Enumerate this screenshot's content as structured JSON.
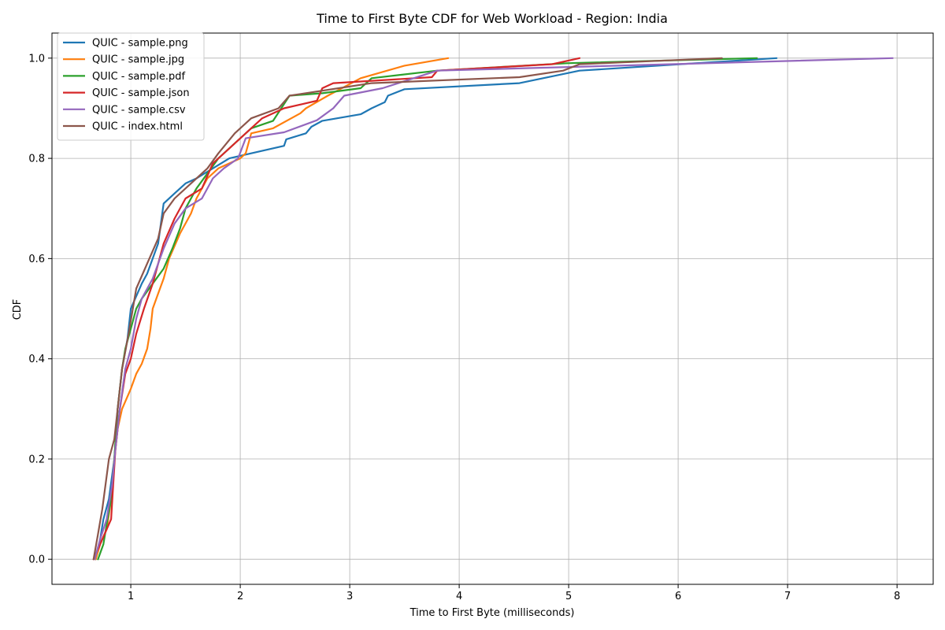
{
  "chart_data": {
    "type": "line",
    "title": "Time to First Byte CDF for Web Workload - Region: India",
    "xlabel": "Time to First Byte (milliseconds)",
    "ylabel": "CDF",
    "xlim": [
      0.28,
      8.33
    ],
    "ylim": [
      -0.05,
      1.05
    ],
    "xticks": [
      1,
      2,
      3,
      4,
      5,
      6,
      7,
      8
    ],
    "yticks": [
      0.0,
      0.2,
      0.4,
      0.6,
      0.8,
      1.0
    ],
    "xtick_labels": [
      "1",
      "2",
      "3",
      "4",
      "5",
      "6",
      "7",
      "8"
    ],
    "ytick_labels": [
      "0.0",
      "0.2",
      "0.4",
      "0.6",
      "0.8",
      "1.0"
    ],
    "grid": true,
    "legend_position": "top-left",
    "series": [
      {
        "name": "QUIC - sample.png",
        "color": "#1f77b4",
        "points": [
          [
            0.68,
            0.0
          ],
          [
            0.72,
            0.04
          ],
          [
            0.75,
            0.08
          ],
          [
            0.8,
            0.12
          ],
          [
            0.85,
            0.2
          ],
          [
            0.88,
            0.3
          ],
          [
            0.92,
            0.38
          ],
          [
            0.97,
            0.44
          ],
          [
            1.0,
            0.5
          ],
          [
            1.1,
            0.55
          ],
          [
            1.15,
            0.57
          ],
          [
            1.25,
            0.63
          ],
          [
            1.3,
            0.71
          ],
          [
            1.4,
            0.73
          ],
          [
            1.5,
            0.75
          ],
          [
            1.6,
            0.76
          ],
          [
            1.75,
            0.78
          ],
          [
            1.9,
            0.8
          ],
          [
            2.1,
            0.81
          ],
          [
            2.4,
            0.825
          ],
          [
            2.42,
            0.838
          ],
          [
            2.6,
            0.85
          ],
          [
            2.65,
            0.863
          ],
          [
            2.75,
            0.875
          ],
          [
            3.1,
            0.888
          ],
          [
            3.2,
            0.9
          ],
          [
            3.32,
            0.912
          ],
          [
            3.35,
            0.925
          ],
          [
            3.5,
            0.938
          ],
          [
            4.55,
            0.95
          ],
          [
            5.1,
            0.975
          ],
          [
            6.9,
            1.0
          ]
        ]
      },
      {
        "name": "QUIC - sample.jpg",
        "color": "#ff7f0e",
        "points": [
          [
            0.68,
            0.0
          ],
          [
            0.72,
            0.03
          ],
          [
            0.78,
            0.06
          ],
          [
            0.82,
            0.12
          ],
          [
            0.85,
            0.2
          ],
          [
            0.88,
            0.26
          ],
          [
            0.92,
            0.3
          ],
          [
            1.0,
            0.34
          ],
          [
            1.05,
            0.37
          ],
          [
            1.1,
            0.39
          ],
          [
            1.15,
            0.42
          ],
          [
            1.18,
            0.46
          ],
          [
            1.2,
            0.5
          ],
          [
            1.25,
            0.53
          ],
          [
            1.3,
            0.56
          ],
          [
            1.35,
            0.6
          ],
          [
            1.45,
            0.65
          ],
          [
            1.55,
            0.69
          ],
          [
            1.6,
            0.72
          ],
          [
            1.7,
            0.76
          ],
          [
            1.8,
            0.78
          ],
          [
            2.0,
            0.8
          ],
          [
            2.05,
            0.81
          ],
          [
            2.1,
            0.85
          ],
          [
            2.3,
            0.86
          ],
          [
            2.55,
            0.89
          ],
          [
            2.6,
            0.9
          ],
          [
            2.8,
            0.925
          ],
          [
            3.1,
            0.96
          ],
          [
            3.5,
            0.985
          ],
          [
            3.9,
            1.0
          ]
        ]
      },
      {
        "name": "QUIC - sample.pdf",
        "color": "#2ca02c",
        "points": [
          [
            0.7,
            0.0
          ],
          [
            0.75,
            0.03
          ],
          [
            0.78,
            0.07
          ],
          [
            0.82,
            0.12
          ],
          [
            0.85,
            0.2
          ],
          [
            0.88,
            0.3
          ],
          [
            0.92,
            0.38
          ],
          [
            0.95,
            0.42
          ],
          [
            1.0,
            0.46
          ],
          [
            1.05,
            0.5
          ],
          [
            1.1,
            0.52
          ],
          [
            1.2,
            0.55
          ],
          [
            1.3,
            0.58
          ],
          [
            1.38,
            0.62
          ],
          [
            1.45,
            0.66
          ],
          [
            1.5,
            0.7
          ],
          [
            1.6,
            0.74
          ],
          [
            1.7,
            0.77
          ],
          [
            1.8,
            0.8
          ],
          [
            1.95,
            0.83
          ],
          [
            2.1,
            0.86
          ],
          [
            2.3,
            0.875
          ],
          [
            2.45,
            0.925
          ],
          [
            2.75,
            0.93
          ],
          [
            3.1,
            0.94
          ],
          [
            3.2,
            0.96
          ],
          [
            3.8,
            0.975
          ],
          [
            5.0,
            0.99
          ],
          [
            6.72,
            1.0
          ]
        ]
      },
      {
        "name": "QUIC - sample.json",
        "color": "#d62728",
        "points": [
          [
            0.66,
            0.0
          ],
          [
            0.72,
            0.03
          ],
          [
            0.78,
            0.06
          ],
          [
            0.82,
            0.08
          ],
          [
            0.84,
            0.15
          ],
          [
            0.86,
            0.22
          ],
          [
            0.9,
            0.3
          ],
          [
            0.95,
            0.37
          ],
          [
            1.0,
            0.4
          ],
          [
            1.05,
            0.45
          ],
          [
            1.12,
            0.5
          ],
          [
            1.2,
            0.55
          ],
          [
            1.3,
            0.63
          ],
          [
            1.4,
            0.68
          ],
          [
            1.5,
            0.72
          ],
          [
            1.65,
            0.74
          ],
          [
            1.75,
            0.79
          ],
          [
            1.9,
            0.82
          ],
          [
            2.05,
            0.85
          ],
          [
            2.2,
            0.88
          ],
          [
            2.4,
            0.9
          ],
          [
            2.7,
            0.915
          ],
          [
            2.75,
            0.94
          ],
          [
            2.85,
            0.95
          ],
          [
            3.75,
            0.962
          ],
          [
            3.8,
            0.975
          ],
          [
            4.85,
            0.988
          ],
          [
            5.1,
            1.0
          ]
        ]
      },
      {
        "name": "QUIC - sample.csv",
        "color": "#9467bd",
        "points": [
          [
            0.67,
            0.0
          ],
          [
            0.72,
            0.04
          ],
          [
            0.78,
            0.08
          ],
          [
            0.83,
            0.15
          ],
          [
            0.86,
            0.22
          ],
          [
            0.9,
            0.3
          ],
          [
            0.95,
            0.38
          ],
          [
            1.0,
            0.42
          ],
          [
            1.05,
            0.48
          ],
          [
            1.1,
            0.52
          ],
          [
            1.2,
            0.56
          ],
          [
            1.3,
            0.62
          ],
          [
            1.4,
            0.67
          ],
          [
            1.5,
            0.7
          ],
          [
            1.65,
            0.72
          ],
          [
            1.75,
            0.76
          ],
          [
            1.85,
            0.78
          ],
          [
            1.98,
            0.8
          ],
          [
            2.05,
            0.84
          ],
          [
            2.4,
            0.852
          ],
          [
            2.7,
            0.876
          ],
          [
            2.85,
            0.9
          ],
          [
            2.95,
            0.925
          ],
          [
            3.3,
            0.94
          ],
          [
            3.8,
            0.975
          ],
          [
            7.96,
            1.0
          ]
        ]
      },
      {
        "name": "QUIC - index.html",
        "color": "#8c564b",
        "points": [
          [
            0.66,
            0.0
          ],
          [
            0.7,
            0.05
          ],
          [
            0.74,
            0.1
          ],
          [
            0.8,
            0.2
          ],
          [
            0.85,
            0.24
          ],
          [
            0.88,
            0.3
          ],
          [
            0.92,
            0.38
          ],
          [
            0.98,
            0.45
          ],
          [
            1.05,
            0.54
          ],
          [
            1.15,
            0.59
          ],
          [
            1.25,
            0.64
          ],
          [
            1.3,
            0.69
          ],
          [
            1.4,
            0.72
          ],
          [
            1.55,
            0.75
          ],
          [
            1.7,
            0.78
          ],
          [
            1.8,
            0.81
          ],
          [
            1.95,
            0.85
          ],
          [
            2.1,
            0.88
          ],
          [
            2.35,
            0.9
          ],
          [
            2.45,
            0.925
          ],
          [
            3.2,
            0.95
          ],
          [
            4.55,
            0.962
          ],
          [
            4.95,
            0.975
          ],
          [
            5.1,
            0.988
          ],
          [
            6.4,
            1.0
          ]
        ]
      }
    ]
  }
}
